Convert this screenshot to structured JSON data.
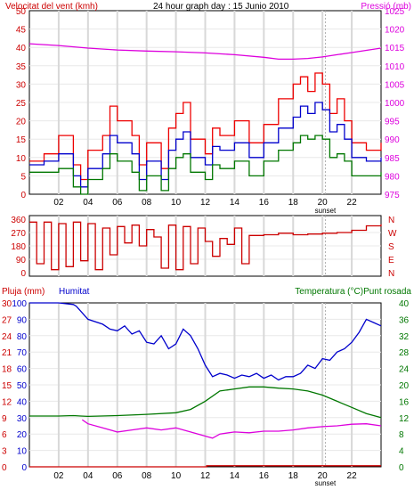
{
  "chart_data": [
    {
      "type": "line",
      "panel": "wind-pressure",
      "title": "24 hour graph day : 15 Junio 2010",
      "left_label": "Velocitat del vent (kmh)",
      "right_label": "Pressió (mb)",
      "left_ticks": [
        "0",
        "5",
        "10",
        "15",
        "20",
        "25",
        "30",
        "35",
        "40",
        "45",
        "50"
      ],
      "right_ticks": [
        "975",
        "980",
        "985",
        "990",
        "995",
        "1000",
        "1005",
        "1010",
        "1015",
        "1020",
        "1025"
      ],
      "ylim_left": [
        0,
        50
      ],
      "ylim_right": [
        975,
        1025
      ],
      "x_ticks": [
        "02",
        "04",
        "06",
        "08",
        "10",
        "12",
        "14",
        "16",
        "18",
        "20",
        "22"
      ],
      "x_marker": "sunset",
      "series": [
        {
          "role": "pressure",
          "axis": "right",
          "color": "#dd00dd",
          "x": [
            0,
            2,
            4,
            6,
            8,
            10,
            12,
            14,
            16,
            17,
            18,
            19,
            20,
            21,
            22,
            23,
            24
          ],
          "y": [
            1016,
            1015.5,
            1014.8,
            1014.3,
            1014,
            1013.8,
            1013.5,
            1013,
            1012.3,
            1011.8,
            1011.8,
            1012,
            1012.4,
            1013,
            1013.6,
            1014.2,
            1014.8
          ]
        },
        {
          "role": "wind-gust",
          "axis": "left",
          "color": "#ee0000",
          "x": [
            0,
            1,
            2,
            3,
            3.5,
            4,
            5,
            5.5,
            6,
            7,
            7.5,
            8,
            9,
            9.5,
            10,
            10.5,
            11,
            12,
            12.5,
            13,
            14,
            15,
            16,
            17,
            18,
            18.5,
            19,
            19.5,
            20,
            20.5,
            21,
            21.5,
            22,
            23,
            24
          ],
          "y": [
            9,
            11,
            16,
            8,
            4,
            12,
            16,
            24,
            20,
            16,
            8,
            14,
            7,
            18,
            22,
            25,
            15,
            11,
            18,
            16,
            20,
            14,
            19,
            26,
            30,
            32,
            28,
            33,
            30,
            22,
            26,
            20,
            14,
            12,
            14
          ]
        },
        {
          "role": "wind-avg",
          "axis": "left",
          "color": "#0000cc",
          "x": [
            0,
            1,
            2,
            3,
            3.5,
            4,
            5,
            5.5,
            6,
            7,
            7.5,
            8,
            9,
            9.5,
            10,
            10.5,
            11,
            12,
            12.5,
            13,
            14,
            15,
            16,
            17,
            18,
            18.5,
            19,
            19.5,
            20,
            20.5,
            21,
            21.5,
            22,
            23,
            24
          ],
          "y": [
            8,
            9,
            11,
            5,
            2,
            7,
            11,
            16,
            14,
            11,
            4,
            9,
            4,
            12,
            15,
            17,
            10,
            8,
            13,
            12,
            14,
            10,
            14,
            18,
            21,
            24,
            22,
            25,
            23,
            17,
            19,
            15,
            10,
            9,
            10
          ]
        },
        {
          "role": "wind-low",
          "axis": "left",
          "color": "#007700",
          "x": [
            0,
            1,
            2,
            3,
            3.5,
            4,
            5,
            5.5,
            6,
            7,
            7.5,
            8,
            9,
            9.5,
            10,
            10.5,
            11,
            12,
            12.5,
            13,
            14,
            15,
            16,
            17,
            18,
            18.5,
            19,
            19.5,
            20,
            20.5,
            21,
            21.5,
            22,
            23,
            24
          ],
          "y": [
            6,
            6,
            7,
            2,
            0,
            4,
            7,
            11,
            9,
            6,
            1,
            5,
            1,
            7,
            10,
            11,
            6,
            4,
            8,
            7,
            9,
            5,
            9,
            12,
            14,
            16,
            15,
            16,
            15,
            10,
            11,
            9,
            5,
            5,
            6
          ]
        }
      ]
    },
    {
      "type": "line",
      "panel": "wind-direction",
      "left_ticks": [
        "360",
        "270",
        "180",
        "90",
        "0"
      ],
      "right_ticks": [
        "N",
        "W",
        "S",
        "E",
        "N"
      ],
      "ylim_left": [
        0,
        360
      ],
      "series": [
        {
          "role": "direction",
          "axis": "left",
          "color": "#cc0000",
          "x": [
            0,
            0.5,
            1,
            1.5,
            2,
            2.5,
            3,
            3.5,
            4,
            4.5,
            5,
            5.5,
            6,
            6.5,
            7,
            7.5,
            8,
            8.5,
            9,
            9.5,
            10,
            10.5,
            11,
            11.5,
            12,
            12.5,
            13,
            13.5,
            14,
            14.5,
            15,
            16,
            17,
            18,
            19,
            20,
            21,
            22,
            23,
            24
          ],
          "y": [
            340,
            60,
            340,
            20,
            330,
            40,
            340,
            80,
            330,
            20,
            300,
            120,
            310,
            200,
            320,
            180,
            290,
            240,
            30,
            320,
            20,
            310,
            60,
            300,
            210,
            110,
            230,
            190,
            300,
            60,
            250,
            255,
            265,
            255,
            260,
            265,
            270,
            285,
            315,
            325
          ]
        }
      ]
    },
    {
      "type": "line",
      "panel": "rain-humidity-temperature",
      "left_label_rain": "Pluja (mm)",
      "left_label_hum": "Humitat",
      "right_label": "Temperatura (°C)Punt rosada",
      "rain_ticks": [
        "0",
        "3",
        "6",
        "9",
        "12",
        "15",
        "18",
        "21",
        "24",
        "27",
        "30"
      ],
      "hum_ticks": [
        "0",
        "10",
        "20",
        "30",
        "40",
        "50",
        "60",
        "70",
        "80",
        "90",
        "100"
      ],
      "temp_ticks": [
        "0",
        "4",
        "8",
        "12",
        "16",
        "20",
        "24",
        "28",
        "32",
        "36",
        "40"
      ],
      "ylim_humidity": [
        0,
        100
      ],
      "ylim_temperature": [
        0,
        40
      ],
      "x_ticks": [
        "02",
        "04",
        "06",
        "08",
        "10",
        "12",
        "14",
        "16",
        "18",
        "20",
        "22"
      ],
      "x_marker": "sunset",
      "series": [
        {
          "role": "humidity",
          "axis": "hum",
          "color": "#0000cc",
          "x": [
            0,
            1,
            2,
            3,
            3.2,
            3.5,
            4,
            5,
            5.5,
            6,
            6.5,
            7,
            7.5,
            8,
            8.5,
            9,
            9.5,
            10,
            10.5,
            11,
            11.5,
            12,
            12.5,
            13,
            13.5,
            14,
            14.5,
            15,
            15.5,
            16,
            16.5,
            17,
            17.5,
            18,
            18.5,
            19,
            19.5,
            20,
            20.5,
            21,
            21.5,
            22,
            22.5,
            23,
            23.5,
            24
          ],
          "y": [
            100,
            100,
            100,
            99,
            98,
            95,
            90,
            87,
            84,
            83,
            86,
            81,
            83,
            76,
            75,
            80,
            72,
            75,
            84,
            80,
            72,
            62,
            55,
            57,
            56,
            54,
            56,
            55,
            57,
            54,
            56,
            53,
            55,
            55,
            57,
            62,
            60,
            66,
            65,
            70,
            72,
            76,
            82,
            90,
            88,
            86
          ]
        },
        {
          "role": "temperature",
          "axis": "temp",
          "color": "#007700",
          "x": [
            0,
            2,
            3,
            3.5,
            4,
            6,
            8,
            10,
            11,
            12,
            13,
            14,
            15,
            16,
            17,
            18,
            19,
            20,
            21,
            22,
            23,
            24
          ],
          "y": [
            12.4,
            12.4,
            12.5,
            12.4,
            12.3,
            12.5,
            12.8,
            13.2,
            14,
            16,
            18.5,
            19,
            19.5,
            19.5,
            19.2,
            19,
            18.5,
            17.5,
            16,
            14.5,
            13,
            12
          ]
        },
        {
          "role": "dew-point",
          "axis": "temp",
          "color": "#dd00dd",
          "x": [
            0,
            3.5,
            3.6,
            4,
            5,
            6,
            7,
            8,
            9,
            10,
            11,
            12,
            12.5,
            13,
            14,
            15,
            16,
            17,
            18,
            19,
            20,
            21,
            22,
            23,
            24
          ],
          "y": null,
          "y_values": [
            0,
            0,
            11.5,
            10.5,
            9.5,
            8.5,
            9,
            9.5,
            9,
            9.5,
            8.5,
            7.5,
            7,
            8,
            8.5,
            8.3,
            8.7,
            8.7,
            9,
            9.5,
            9.8,
            10,
            10.4,
            10.5,
            10
          ]
        },
        {
          "role": "rain",
          "axis": "rain",
          "color": "#cc0000",
          "x": [
            0,
            12,
            12.1,
            24
          ],
          "y": [
            0,
            0,
            0.2,
            0.2
          ]
        }
      ]
    }
  ]
}
